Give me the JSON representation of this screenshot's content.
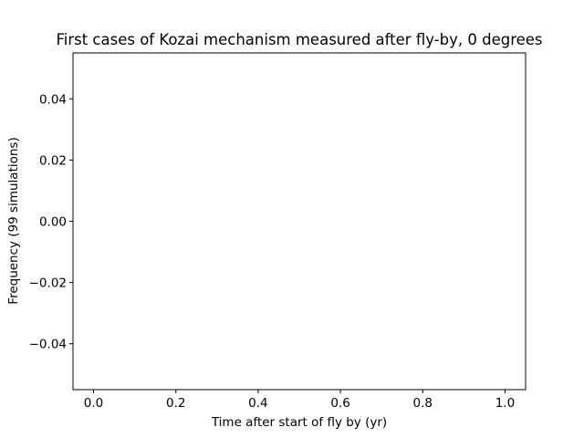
{
  "chart_data": {
    "type": "bar",
    "title": "First cases of Kozai mechanism measured after fly-by, 0 degrees",
    "xlabel": "Time after start of fly by (yr)",
    "ylabel": "Frequency (99 simulations)",
    "xlim": [
      -0.05,
      1.05
    ],
    "ylim": [
      -0.055,
      0.055
    ],
    "x_ticks": [
      0.0,
      0.2,
      0.4,
      0.6,
      0.8,
      1.0
    ],
    "x_tick_labels": [
      "0.0",
      "0.2",
      "0.4",
      "0.6",
      "0.8",
      "1.0"
    ],
    "y_ticks": [
      0.04,
      0.02,
      0.0,
      -0.02,
      -0.04
    ],
    "y_tick_labels": [
      "0.04",
      "0.02",
      "0.00",
      "−0.02",
      "−0.04"
    ],
    "series": [],
    "grid": false,
    "legend": "none",
    "colors": {
      "axes": "#000000",
      "background": "#ffffff"
    }
  }
}
